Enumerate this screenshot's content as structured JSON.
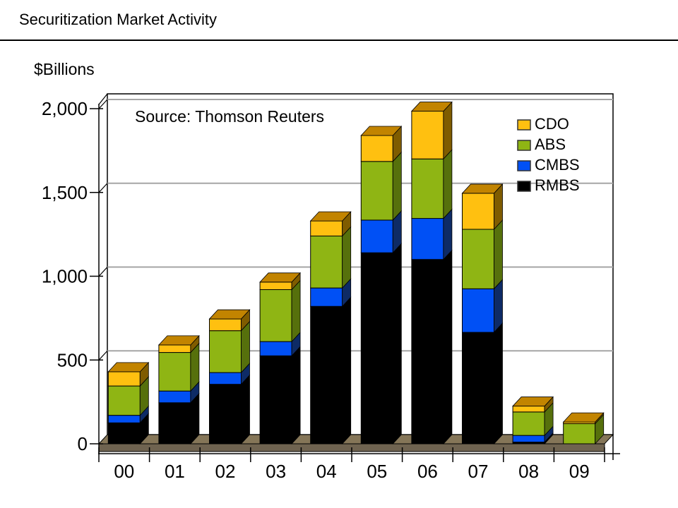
{
  "page": {
    "title": "Securitization Market Activity",
    "units_label": "$Billions"
  },
  "chart_data": {
    "type": "bar",
    "stacked": true,
    "style": "pseudo-3d",
    "title": "Securitization Market Activity",
    "ylabel": "$Billions",
    "xlabel": "",
    "categories": [
      "00",
      "01",
      "02",
      "03",
      "04",
      "05",
      "06",
      "07",
      "08",
      "09"
    ],
    "stack_order": "bottom-to-top",
    "series": [
      {
        "name": "RMBS",
        "color": "#000000",
        "side_color": "#000000",
        "top_color": "#1A1A1A",
        "values": [
          125,
          245,
          355,
          525,
          820,
          1140,
          1100,
          665,
          10,
          0
        ]
      },
      {
        "name": "CMBS",
        "color": "#0050F5",
        "side_color": "#0E2B66",
        "top_color": "#0A3AA8",
        "values": [
          45,
          70,
          70,
          85,
          110,
          195,
          245,
          260,
          40,
          0
        ]
      },
      {
        "name": "ABS",
        "color": "#8FB514",
        "side_color": "#56700C",
        "top_color": "#6E8A00",
        "values": [
          175,
          230,
          250,
          310,
          310,
          350,
          355,
          355,
          140,
          120
        ]
      },
      {
        "name": "CDO",
        "color": "#FFC010",
        "side_color": "#7F5C00",
        "top_color": "#C28400",
        "values": [
          85,
          45,
          70,
          45,
          90,
          155,
          285,
          215,
          35,
          10
        ]
      }
    ],
    "legend_order_displayed": [
      "CDO",
      "ABS",
      "CMBS",
      "RMBS"
    ],
    "legend_position": "top-right-inside",
    "ylim": [
      0,
      2000
    ],
    "ytick_values": [
      0,
      500,
      1000,
      1500,
      2000
    ],
    "ytick_labels": [
      "0",
      "500",
      "1,000",
      "1,500",
      "2,000"
    ],
    "gridlines": true,
    "source": "Source: Thomson Reuters"
  },
  "colors": {
    "background": "#FFFFFF",
    "text": "#000000",
    "gridline": "#A6A6A6",
    "axis_line": "#000000",
    "floor_top": "#857658",
    "floor_front": "#6F6350",
    "wall": "#FFFFFF",
    "legend_swatch_border": "#333333"
  }
}
